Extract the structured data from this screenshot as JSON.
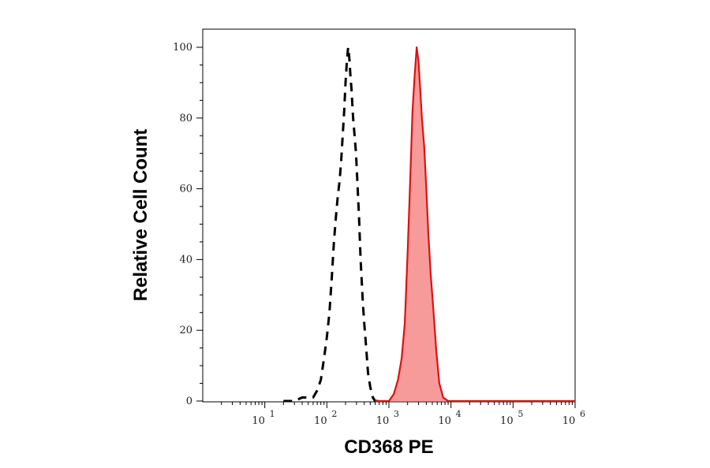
{
  "chart_data": {
    "type": "area",
    "xlabel": "CD368 PE",
    "ylabel": "Relative Cell Count",
    "xscale": "log",
    "xlim": [
      1,
      1000000
    ],
    "ylim": [
      0,
      104
    ],
    "x_ticks": [
      {
        "base": "10",
        "exp": "1",
        "value": 10
      },
      {
        "base": "10",
        "exp": "2",
        "value": 100
      },
      {
        "base": "10",
        "exp": "3",
        "value": 1000
      },
      {
        "base": "10",
        "exp": "4",
        "value": 10000
      },
      {
        "base": "10",
        "exp": "5",
        "value": 100000
      },
      {
        "base": "10",
        "exp": "6",
        "value": 1000000
      }
    ],
    "y_ticks": [
      "0",
      "20",
      "40",
      "60",
      "80",
      "100"
    ],
    "series": [
      {
        "style": "dashed",
        "color": "#000000",
        "fill": "none",
        "points": [
          [
            20,
            0
          ],
          [
            30,
            0
          ],
          [
            40,
            1
          ],
          [
            50,
            1
          ],
          [
            60,
            1
          ],
          [
            70,
            3
          ],
          [
            80,
            6
          ],
          [
            90,
            12
          ],
          [
            100,
            18
          ],
          [
            110,
            25
          ],
          [
            120,
            35
          ],
          [
            130,
            45
          ],
          [
            140,
            52
          ],
          [
            150,
            58
          ],
          [
            160,
            62
          ],
          [
            170,
            68
          ],
          [
            180,
            75
          ],
          [
            190,
            82
          ],
          [
            200,
            90
          ],
          [
            210,
            96
          ],
          [
            220,
            100
          ],
          [
            230,
            97
          ],
          [
            240,
            92
          ],
          [
            250,
            88
          ],
          [
            265,
            80
          ],
          [
            280,
            75
          ],
          [
            295,
            70
          ],
          [
            310,
            62
          ],
          [
            330,
            52
          ],
          [
            350,
            40
          ],
          [
            380,
            28
          ],
          [
            400,
            22
          ],
          [
            430,
            15
          ],
          [
            460,
            8
          ],
          [
            500,
            4
          ],
          [
            550,
            1
          ],
          [
            600,
            0
          ],
          [
            700,
            0
          ]
        ]
      },
      {
        "style": "solid",
        "color": "#dd1111",
        "fill": "#f79a9a",
        "points": [
          [
            600,
            0
          ],
          [
            1000,
            0
          ],
          [
            1200,
            2
          ],
          [
            1400,
            6
          ],
          [
            1600,
            12
          ],
          [
            1800,
            22
          ],
          [
            2000,
            42
          ],
          [
            2200,
            62
          ],
          [
            2400,
            82
          ],
          [
            2600,
            92
          ],
          [
            2800,
            100
          ],
          [
            3000,
            96
          ],
          [
            3200,
            88
          ],
          [
            3400,
            80
          ],
          [
            3700,
            72
          ],
          [
            4000,
            60
          ],
          [
            4300,
            48
          ],
          [
            4700,
            36
          ],
          [
            5200,
            26
          ],
          [
            5800,
            14
          ],
          [
            6500,
            5
          ],
          [
            7500,
            1
          ],
          [
            9000,
            0
          ],
          [
            1000000,
            0
          ]
        ]
      }
    ]
  }
}
